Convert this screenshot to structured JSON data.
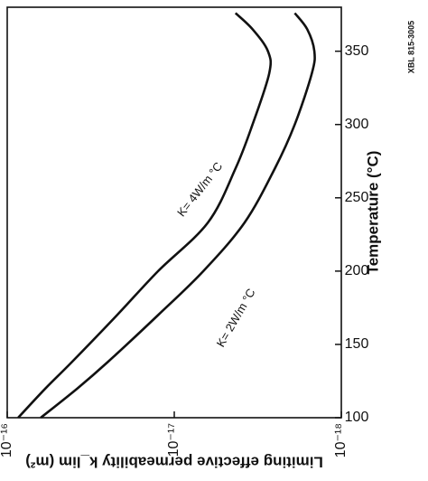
{
  "chart_data": {
    "type": "line",
    "x_label": "Temperature (°C)",
    "y_label": "Limiting effective permeability k_lim (m²)",
    "figure_id": "XBL 815-3005",
    "x": [
      100,
      120,
      138,
      170,
      200,
      233,
      270,
      300,
      335,
      350,
      365,
      376
    ],
    "series": [
      {
        "name": "K= 4W/m °C",
        "color": "#111111",
        "values": [
          8.6e-17,
          5.9e-17,
          4.1e-17,
          2.2e-17,
          1.25e-17,
          6.3e-18,
          4.3e-18,
          3.4e-18,
          2.7e-18,
          2.75e-18,
          3.4e-18,
          4.3e-18
        ]
      },
      {
        "name": "K= 2W/m °C",
        "color": "#111111",
        "values": [
          6.3e-17,
          3.8e-17,
          2.5e-17,
          1.25e-17,
          6.7e-18,
          3.8e-18,
          2.5e-18,
          1.9e-18,
          1.5e-18,
          1.45e-18,
          1.6e-18,
          1.9e-18
        ]
      }
    ],
    "xlim": [
      100,
      380
    ],
    "xticks": [
      100,
      150,
      200,
      250,
      300,
      350
    ],
    "ylim": [
      1e-18,
      1e-16
    ],
    "ylog": true,
    "yticks": [
      {
        "value": 1e-16,
        "label": "10⁻¹⁶"
      },
      {
        "value": 1e-17,
        "label": "10⁻¹⁷"
      },
      {
        "value": 1e-18,
        "label": "10⁻¹⁸"
      }
    ],
    "rotation": -90
  }
}
